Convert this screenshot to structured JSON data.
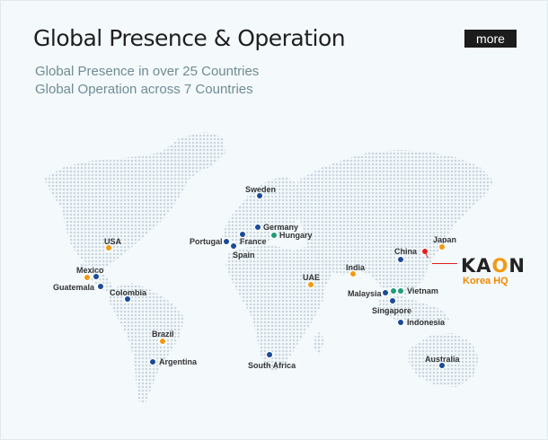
{
  "header": {
    "title": "Global Presence & Operation",
    "more_label": "more"
  },
  "subtitles": [
    "Global Presence in over 25 Countries",
    "Global Operation across 7 Countries"
  ],
  "colors": {
    "presence": "#1a4b9a",
    "operation": "#f29a12",
    "hq": "#e62020",
    "hungary": "#1f9d79",
    "vietnam": "#1f9d79",
    "map_dots": "#c9d6de"
  },
  "locations": {
    "sweden": "Sweden",
    "germany": "Germany",
    "hungary": "Hungary",
    "portugal": "Portugal",
    "france": "France",
    "spain": "Spain",
    "usa": "USA",
    "mexico": "Mexico",
    "guatemala": "Guatemala",
    "colombia": "Colombia",
    "brazil": "Brazil",
    "argentina": "Argentina",
    "uae": "UAE",
    "india": "India",
    "china": "China",
    "japan": "Japan",
    "malaysia": "Malaysia",
    "vietnam": "Vietnam",
    "singapore": "Singapore",
    "indonesia": "Indonesia",
    "south_africa": "South Africa",
    "australia": "Australia"
  },
  "hq": {
    "brand": "KAON",
    "label": "Korea HQ"
  }
}
